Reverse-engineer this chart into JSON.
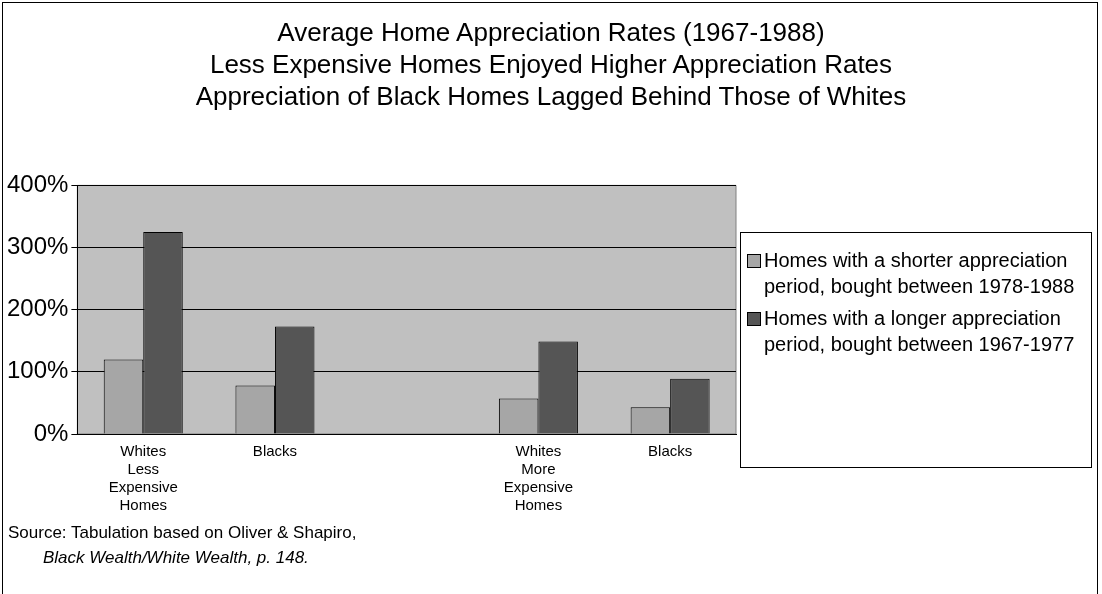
{
  "chart_data": {
    "type": "bar",
    "title": "Average Home Appreciation Rates (1967-1988)",
    "subtitle": "Less Expensive Homes Enjoyed Higher Appreciation Rates\nAppreciation of Black Homes Lagged Behind Those of Whites",
    "categories": [
      "Whites Less Expensive Homes",
      "Blacks",
      null,
      "Whites More Expensive Homes",
      "Blacks"
    ],
    "series": [
      {
        "name": "Homes with a shorter appreciation period, bought between 1978-1988",
        "color": "#a6a6a6",
        "values": [
          120,
          78,
          null,
          57,
          43
        ]
      },
      {
        "name": "Homes with a longer appreciation period, bought between 1967-1977",
        "color": "#555555",
        "values": [
          325,
          173,
          null,
          149,
          89
        ]
      }
    ],
    "ylim": [
      0,
      400
    ],
    "yticks": [
      {
        "value": 0,
        "label": "0%"
      },
      {
        "value": 100,
        "label": "100%"
      },
      {
        "value": 200,
        "label": "200%"
      },
      {
        "value": 300,
        "label": "300%"
      },
      {
        "value": 400,
        "label": "400%"
      }
    ],
    "grid": "y",
    "legend": "right",
    "annotations": [
      "Source: Tabulation based on Oliver & Shapiro,",
      "Black Wealth/White Wealth, p. 148."
    ]
  }
}
